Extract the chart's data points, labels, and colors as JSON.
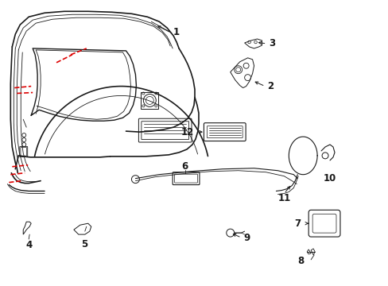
{
  "bg_color": "#ffffff",
  "line_color": "#1a1a1a",
  "red_color": "#dd0000",
  "fig_width": 4.89,
  "fig_height": 3.6,
  "dpi": 100,
  "label_fontsize": 8.5,
  "label_fontsize_small": 7.5
}
